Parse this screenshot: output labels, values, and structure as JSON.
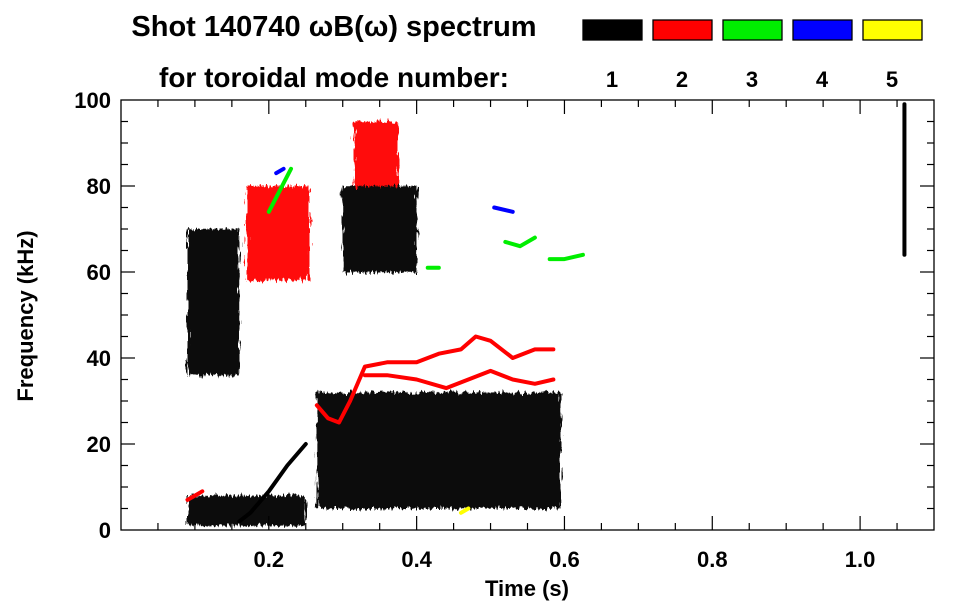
{
  "chart_data": {
    "type": "heatmap",
    "title": "Shot 140740 ωB(ω) spectrum",
    "subtitle": "for toroidal mode number:",
    "xlabel": "Time (s)",
    "ylabel": "Frequency (kHz)",
    "xlim": [
      0.0,
      1.1
    ],
    "ylim": [
      0,
      100
    ],
    "x_ticks": [
      {
        "value": 0.2,
        "label": "0.2"
      },
      {
        "value": 0.4,
        "label": "0.4"
      },
      {
        "value": 0.6,
        "label": "0.6"
      },
      {
        "value": 0.8,
        "label": "0.8"
      },
      {
        "value": 1.0,
        "label": "1.0"
      }
    ],
    "y_ticks": [
      {
        "value": 0,
        "label": "0"
      },
      {
        "value": 20,
        "label": "20"
      },
      {
        "value": 40,
        "label": "40"
      },
      {
        "value": 60,
        "label": "60"
      },
      {
        "value": 80,
        "label": "80"
      },
      {
        "value": 100,
        "label": "100"
      }
    ],
    "legend_position": "top-right",
    "modes": [
      {
        "n": "1",
        "color": "#000000"
      },
      {
        "n": "2",
        "color": "#ff0000"
      },
      {
        "n": "3",
        "color": "#00ee00"
      },
      {
        "n": "4",
        "color": "#0000ff"
      },
      {
        "n": "5",
        "color": "#ffff00"
      }
    ],
    "series": [
      {
        "mode": "1",
        "shape": "blob",
        "t": [
          0.09,
          0.16
        ],
        "f": [
          36,
          70
        ]
      },
      {
        "mode": "1",
        "shape": "blob",
        "t": [
          0.09,
          0.25
        ],
        "f": [
          1,
          8
        ]
      },
      {
        "mode": "1",
        "shape": "blob",
        "t": [
          0.265,
          0.595
        ],
        "f": [
          5,
          32
        ]
      },
      {
        "mode": "1",
        "shape": "blob",
        "t": [
          0.3,
          0.4
        ],
        "f": [
          60,
          80
        ]
      },
      {
        "mode": "1",
        "shape": "line",
        "t": [
          0.16,
          0.175,
          0.2,
          0.225,
          0.25
        ],
        "f": [
          2,
          4,
          9,
          15,
          20
        ]
      },
      {
        "mode": "1",
        "shape": "line",
        "t": [
          1.06,
          1.06
        ],
        "f": [
          64,
          99
        ]
      },
      {
        "mode": "2",
        "shape": "line",
        "t": [
          0.265,
          0.28,
          0.295,
          0.31,
          0.33,
          0.36,
          0.4,
          0.43,
          0.46,
          0.48,
          0.5,
          0.53,
          0.56,
          0.585
        ],
        "f": [
          29,
          26,
          25,
          30,
          38,
          39,
          39,
          41,
          42,
          45,
          44,
          40,
          42,
          42
        ]
      },
      {
        "mode": "2",
        "shape": "line",
        "t": [
          0.33,
          0.36,
          0.4,
          0.44,
          0.47,
          0.5,
          0.53,
          0.56,
          0.585
        ],
        "f": [
          36,
          36,
          35,
          33,
          35,
          37,
          35,
          34,
          35
        ]
      },
      {
        "mode": "2",
        "shape": "blob",
        "t": [
          0.17,
          0.255
        ],
        "f": [
          58,
          80
        ]
      },
      {
        "mode": "2",
        "shape": "blob",
        "t": [
          0.315,
          0.375
        ],
        "f": [
          80,
          95
        ]
      },
      {
        "mode": "2",
        "shape": "line",
        "t": [
          0.09,
          0.1,
          0.11
        ],
        "f": [
          7,
          8,
          9
        ]
      },
      {
        "mode": "3",
        "shape": "line",
        "t": [
          0.2,
          0.215,
          0.23
        ],
        "f": [
          74,
          79,
          84
        ]
      },
      {
        "mode": "3",
        "shape": "line",
        "t": [
          0.52,
          0.54,
          0.56
        ],
        "f": [
          67,
          66,
          68
        ]
      },
      {
        "mode": "3",
        "shape": "line",
        "t": [
          0.58,
          0.6,
          0.625
        ],
        "f": [
          63,
          63,
          64
        ]
      },
      {
        "mode": "3",
        "shape": "line",
        "t": [
          0.415,
          0.43
        ],
        "f": [
          61,
          61
        ]
      },
      {
        "mode": "4",
        "shape": "line",
        "t": [
          0.21,
          0.22
        ],
        "f": [
          83,
          84
        ]
      },
      {
        "mode": "4",
        "shape": "line",
        "t": [
          0.505,
          0.53
        ],
        "f": [
          75,
          74
        ]
      },
      {
        "mode": "5",
        "shape": "line",
        "t": [
          0.46,
          0.47
        ],
        "f": [
          4,
          5
        ]
      }
    ]
  }
}
